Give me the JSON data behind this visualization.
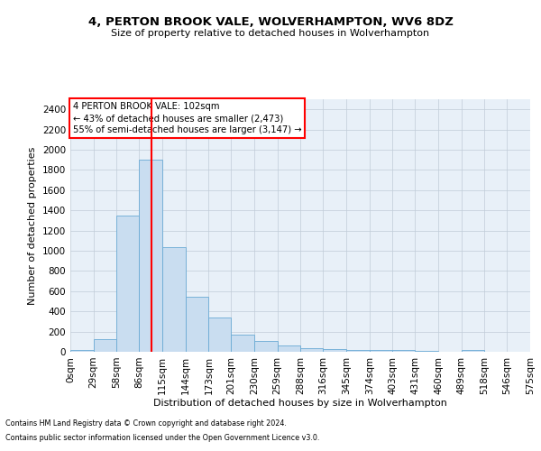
{
  "title": "4, PERTON BROOK VALE, WOLVERHAMPTON, WV6 8DZ",
  "subtitle": "Size of property relative to detached houses in Wolverhampton",
  "xlabel": "Distribution of detached houses by size in Wolverhampton",
  "ylabel": "Number of detached properties",
  "bar_values": [
    15,
    125,
    1350,
    1900,
    1040,
    545,
    335,
    170,
    110,
    60,
    38,
    28,
    20,
    15,
    20,
    5,
    0,
    15,
    0,
    0
  ],
  "bin_labels": [
    "0sqm",
    "29sqm",
    "58sqm",
    "86sqm",
    "115sqm",
    "144sqm",
    "173sqm",
    "201sqm",
    "230sqm",
    "259sqm",
    "288sqm",
    "316sqm",
    "345sqm",
    "374sqm",
    "403sqm",
    "431sqm",
    "460sqm",
    "489sqm",
    "518sqm",
    "546sqm",
    "575sqm"
  ],
  "bar_color": "#c9ddf0",
  "bar_edge_color": "#6aaad4",
  "vline_x": 102,
  "vline_color": "red",
  "ylim": [
    0,
    2500
  ],
  "yticks": [
    0,
    200,
    400,
    600,
    800,
    1000,
    1200,
    1400,
    1600,
    1800,
    2000,
    2200,
    2400
  ],
  "annotation_text": "4 PERTON BROOK VALE: 102sqm\n← 43% of detached houses are smaller (2,473)\n55% of semi-detached houses are larger (3,147) →",
  "annotation_box_color": "red",
  "footer1": "Contains HM Land Registry data © Crown copyright and database right 2024.",
  "footer2": "Contains public sector information licensed under the Open Government Licence v3.0.",
  "bin_edges": [
    0,
    29,
    58,
    86,
    115,
    144,
    173,
    201,
    230,
    259,
    288,
    316,
    345,
    374,
    403,
    431,
    460,
    489,
    518,
    546,
    575
  ],
  "bg_color": "#e8f0f8"
}
